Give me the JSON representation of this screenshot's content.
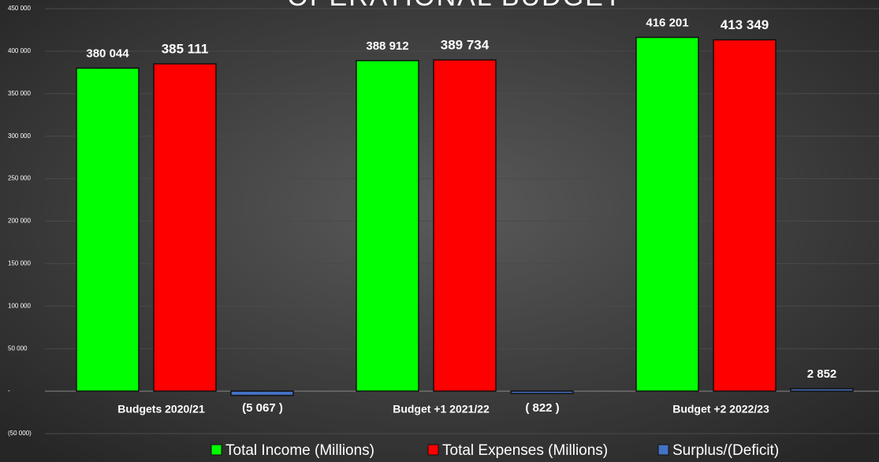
{
  "chart_data": {
    "type": "bar",
    "title": "OPERATIONAL BUDGET",
    "categories": [
      "Budgets 2020/21",
      "Budget +1 2021/22",
      "Budget +2 2022/23"
    ],
    "series": [
      {
        "name": "Total Income (Millions)",
        "color": "#00ff00",
        "values": [
          380044,
          388912,
          416201
        ],
        "value_labels": [
          "380 044",
          "388 912",
          "416 201"
        ]
      },
      {
        "name": "Total Expenses (Millions)",
        "color": "#ff0000",
        "values": [
          385111,
          389734,
          413349
        ],
        "value_labels": [
          "385 111",
          "389 734",
          "413 349"
        ]
      },
      {
        "name": "Surplus/(Deficit)",
        "color": "#4472c4",
        "values": [
          -5067,
          -822,
          2852
        ],
        "value_labels": [
          "(5 067 )",
          "( 822 )",
          "2 852"
        ]
      }
    ],
    "ylim": [
      -50000,
      450000
    ],
    "yticks": [
      {
        "value": -50000,
        "label": "(50 000)"
      },
      {
        "value": 0,
        "label": "-"
      },
      {
        "value": 50000,
        "label": "50 000"
      },
      {
        "value": 100000,
        "label": "100 000"
      },
      {
        "value": 150000,
        "label": "150 000"
      },
      {
        "value": 200000,
        "label": "200 000"
      },
      {
        "value": 250000,
        "label": "250 000"
      },
      {
        "value": 300000,
        "label": "300 000"
      },
      {
        "value": 350000,
        "label": "350 000"
      },
      {
        "value": 400000,
        "label": "400 000"
      },
      {
        "value": 450000,
        "label": "450 000"
      }
    ],
    "grid": true,
    "legend": "bottom"
  }
}
